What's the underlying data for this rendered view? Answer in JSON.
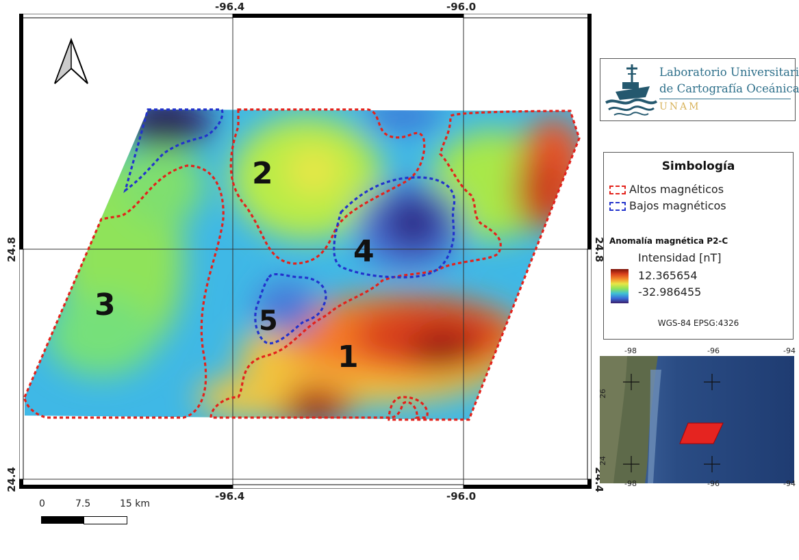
{
  "map": {
    "frame_labels": {
      "lon_left": "-96.4",
      "lon_right": "-96.0",
      "lat_upper": "24.8",
      "lat_lower": "24.4"
    },
    "zones": [
      {
        "label": "1",
        "type": "Altos magnéticos"
      },
      {
        "label": "2",
        "type": "Altos magnéticos"
      },
      {
        "label": "3",
        "type": "Altos magnéticos"
      },
      {
        "label": "4",
        "type": "Bajos magnéticos"
      },
      {
        "label": "5",
        "type": "Bajos magnéticos"
      }
    ],
    "scale_bar": {
      "tick_0": "0",
      "tick_1": "7.5",
      "tick_2": "15 km"
    }
  },
  "logo": {
    "line1": "Laboratorio Universitario",
    "line2": "de Cartografía Oceánica",
    "line3": "UNAM"
  },
  "legend": {
    "title": "Simbología",
    "items": [
      {
        "label": "Altos magnéticos",
        "color": "#e3221b"
      },
      {
        "label": "Bajos magnéticos",
        "color": "#2233cc"
      }
    ],
    "layer_title": "Anomalía magnética P2-C",
    "ramp_title": "Intensidad [nT]",
    "max": "12.365654",
    "min": "-32.986455",
    "crs": "WGS-84 EPSG:4326"
  },
  "inset": {
    "top_ticks": [
      "-98",
      "-96",
      "-94"
    ],
    "bottom_ticks": [
      "-98",
      "-96",
      "-94"
    ],
    "left_ticks": [
      "26",
      "24"
    ],
    "area_color": "#e52420"
  }
}
